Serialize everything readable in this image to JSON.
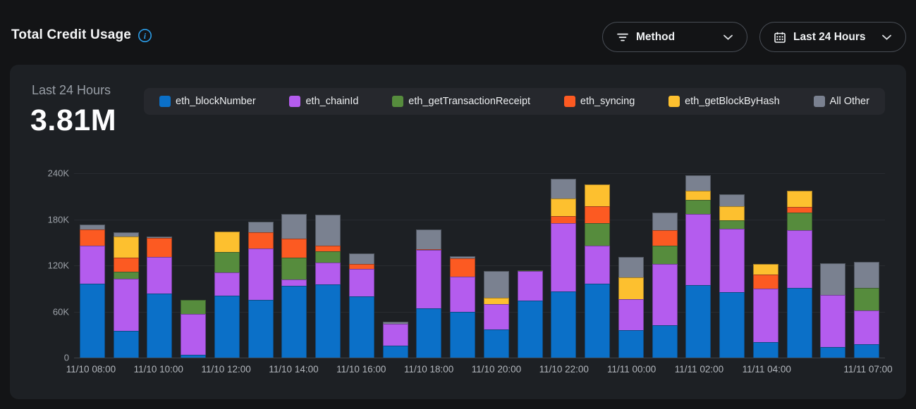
{
  "header": {
    "title": "Total Credit Usage",
    "method_filter_label": "Method",
    "time_range_label": "Last 24 Hours"
  },
  "card": {
    "range_label": "Last 24 Hours",
    "total": "3.81M"
  },
  "colors": {
    "info_icon": "#2b9de8",
    "page_bg": "#131416",
    "card_bg": "#1d2024",
    "legend_bg": "#26282d"
  },
  "chart_data": {
    "type": "bar",
    "stacked": true,
    "title": "Total Credit Usage",
    "unit": "K credits",
    "ylim": [
      0,
      240
    ],
    "grid": true,
    "legend_position": "top",
    "y_ticks_bottom_up": [
      "0",
      "60K",
      "120K",
      "180K",
      "240K"
    ],
    "x": [
      "11/10 08:00",
      "11/10 09:00",
      "11/10 10:00",
      "11/10 11:00",
      "11/10 12:00",
      "11/10 13:00",
      "11/10 14:00",
      "11/10 15:00",
      "11/10 16:00",
      "11/10 17:00",
      "11/10 18:00",
      "11/10 19:00",
      "11/10 20:00",
      "11/10 21:00",
      "11/10 22:00",
      "11/10 23:00",
      "11/11 00:00",
      "11/11 01:00",
      "11/11 02:00",
      "11/11 03:00",
      "11/11 04:00",
      "11/11 05:00",
      "11/11 06:00",
      "11/11 07:00"
    ],
    "x_tick_labels": [
      {
        "label": "11/10 08:00",
        "slot": 0
      },
      {
        "label": "11/10 10:00",
        "slot": 2
      },
      {
        "label": "11/10 12:00",
        "slot": 4
      },
      {
        "label": "11/10 14:00",
        "slot": 6
      },
      {
        "label": "11/10 16:00",
        "slot": 8
      },
      {
        "label": "11/10 18:00",
        "slot": 10
      },
      {
        "label": "11/10 20:00",
        "slot": 12
      },
      {
        "label": "11/10 22:00",
        "slot": 14
      },
      {
        "label": "11/11 00:00",
        "slot": 16
      },
      {
        "label": "11/11 02:00",
        "slot": 18
      },
      {
        "label": "11/11 04:00",
        "slot": 20
      },
      {
        "label": "11/11 07:00",
        "slot": 23
      }
    ],
    "series": [
      {
        "name": "eth_blockNumber",
        "color": "#0b70c8",
        "values": [
          96,
          35,
          83,
          4,
          81,
          75,
          93,
          95,
          80,
          16,
          64,
          60,
          37,
          74,
          86,
          96,
          36,
          42,
          94,
          85,
          20,
          91,
          14,
          17
        ]
      },
      {
        "name": "eth_chainId",
        "color": "#b45cee",
        "values": [
          50,
          68,
          48,
          53,
          30,
          67,
          9,
          29,
          35,
          28,
          76,
          45,
          33,
          39,
          89,
          50,
          40,
          80,
          93,
          83,
          70,
          75,
          68,
          44
        ]
      },
      {
        "name": "eth_getTransactionReceipt",
        "color": "#568c3d",
        "values": [
          0,
          9,
          0,
          18,
          26,
          0,
          28,
          14,
          0,
          0,
          0,
          0,
          0,
          1,
          0,
          29,
          0,
          24,
          18,
          11,
          0,
          23,
          0,
          30
        ]
      },
      {
        "name": "eth_syncing",
        "color": "#fc5a22",
        "values": [
          21,
          18,
          25,
          0,
          0,
          21,
          25,
          8,
          7,
          0,
          1,
          24,
          0,
          0,
          9,
          22,
          0,
          20,
          0,
          0,
          18,
          7,
          0,
          0
        ]
      },
      {
        "name": "eth_getBlockByHash",
        "color": "#fdc02f",
        "values": [
          0,
          28,
          0,
          0,
          27,
          0,
          0,
          0,
          0,
          0,
          0,
          0,
          8,
          0,
          23,
          28,
          28,
          0,
          12,
          18,
          14,
          21,
          0,
          0
        ]
      },
      {
        "name": "All Other",
        "color": "#7a8190",
        "values": [
          6,
          5,
          2,
          0,
          0,
          14,
          32,
          40,
          14,
          3,
          26,
          3,
          35,
          0,
          26,
          0,
          27,
          23,
          20,
          16,
          0,
          0,
          41,
          34
        ]
      }
    ]
  }
}
